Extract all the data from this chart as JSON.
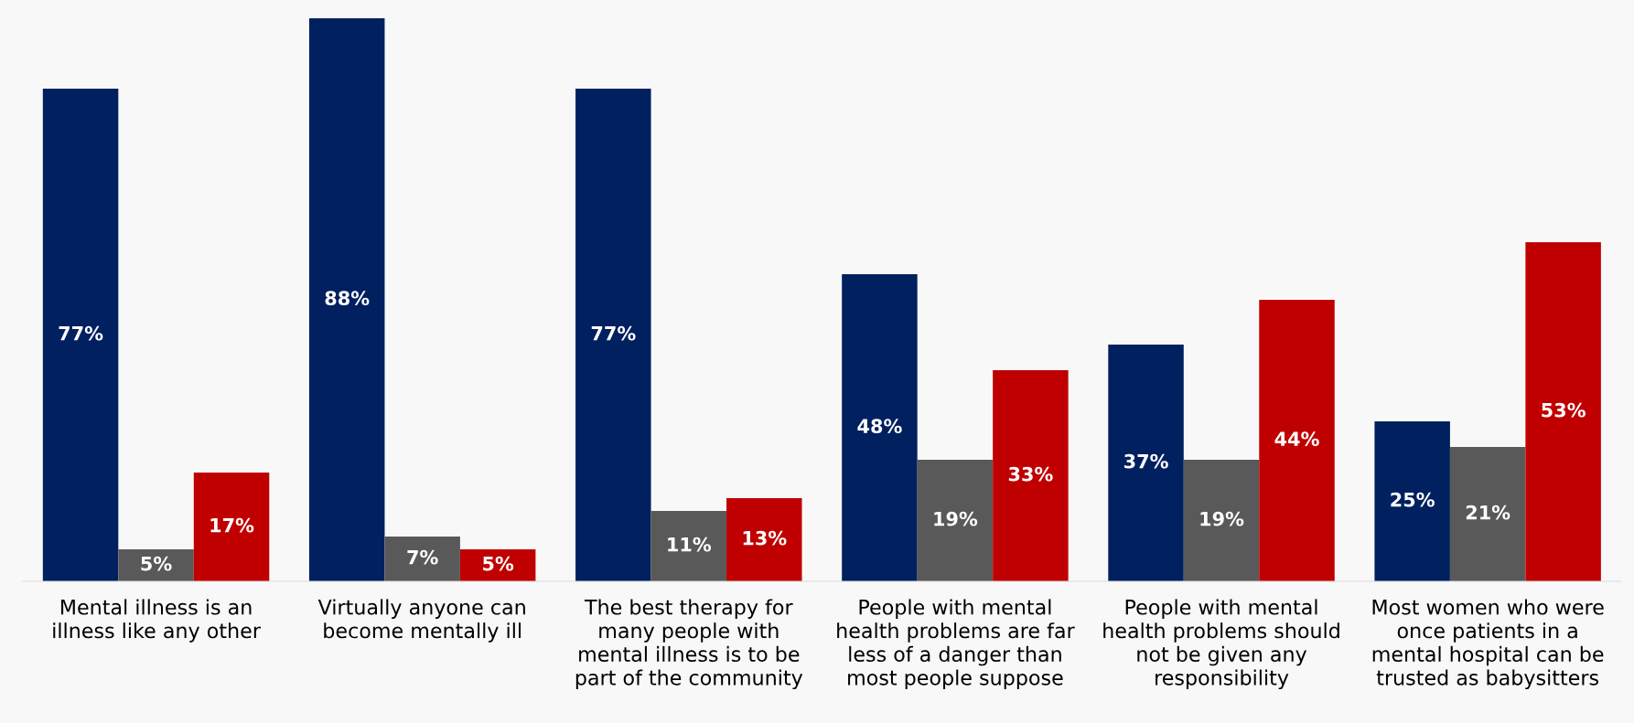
{
  "chart_data": {
    "type": "bar",
    "categories": [
      "Mental illness is an\nillness like any other",
      "Virtually anyone can\nbecome mentally ill",
      "The best therapy for\nmany people with\nmental illness is to be\npart of the community",
      "People with mental\nhealth problems are far\nless of a danger than\nmost people suppose",
      "People with mental\nhealth problems should\nnot be given any\nresponsibility",
      "Most women who were\nonce patients in a\nmental hospital can be\ntrusted as babysitters"
    ],
    "series": [
      {
        "color": "#002060",
        "values": [
          77,
          88,
          77,
          48,
          37,
          25
        ],
        "value_labels": [
          "77%",
          "88%",
          "77%",
          "48%",
          "37%",
          "25%"
        ]
      },
      {
        "color": "#595959",
        "values": [
          5,
          7,
          11,
          19,
          19,
          21
        ],
        "value_labels": [
          "5%",
          "7%",
          "11%",
          "19%",
          "19%",
          "21%"
        ]
      },
      {
        "color": "#c00000",
        "values": [
          17,
          5,
          13,
          33,
          44,
          53
        ],
        "value_labels": [
          "17%",
          "5%",
          "13%",
          "33%",
          "44%",
          "53%"
        ]
      }
    ],
    "grid": false,
    "legend": false
  }
}
